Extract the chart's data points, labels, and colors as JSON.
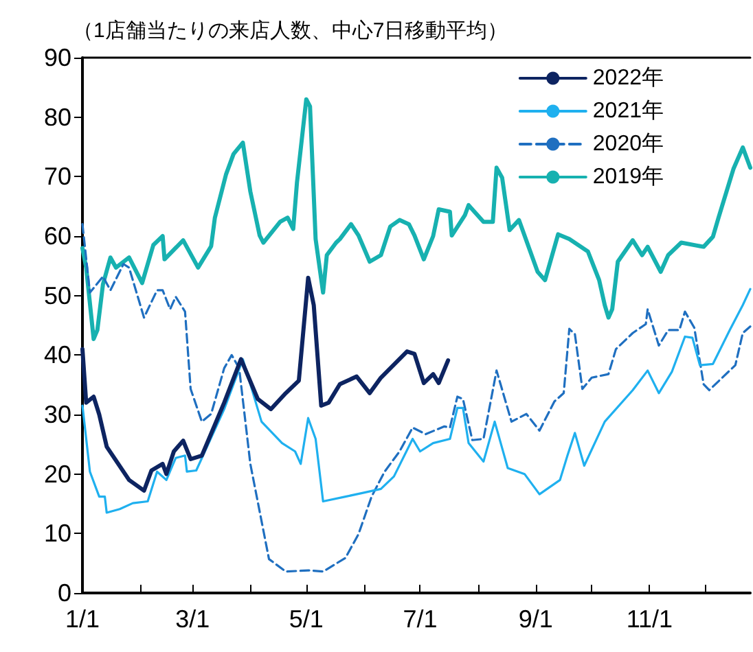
{
  "chart_data": {
    "type": "line",
    "title": "（1店舗当たりの来店人数、中心7日移動平均）",
    "xlim": [
      "--01-01",
      "--12-25"
    ],
    "xticks": [
      {
        "value": "--01-01",
        "label": "1/1"
      },
      {
        "value": "--02-01",
        "label": null
      },
      {
        "value": "--03-01",
        "label": "3/1"
      },
      {
        "value": "--04-01",
        "label": null
      },
      {
        "value": "--05-01",
        "label": "5/1"
      },
      {
        "value": "--06-01",
        "label": null
      },
      {
        "value": "--07-01",
        "label": "7/1"
      },
      {
        "value": "--08-01",
        "label": null
      },
      {
        "value": "--09-01",
        "label": "9/1"
      },
      {
        "value": "--10-01",
        "label": null
      },
      {
        "value": "--11-01",
        "label": "11/1"
      },
      {
        "value": "--12-01",
        "label": null
      }
    ],
    "ylim": [
      0,
      90
    ],
    "yticks": [
      0,
      10,
      20,
      30,
      40,
      50,
      60,
      70,
      80,
      90
    ],
    "grid": false,
    "legend": "top right",
    "marker": "none",
    "series": [
      {
        "name": "2022年",
        "color": "#0d2461",
        "x": [
          "--01-01",
          "--01-03",
          "--01-07",
          "--01-10",
          "--01-14",
          "--01-26",
          "--02-03",
          "--02-07",
          "--02-13",
          "--02-15",
          "--02-19",
          "--02-24",
          "--02-28",
          "--03-06",
          "--03-18",
          "--03-27",
          "--04-05",
          "--04-12",
          "--04-20",
          "--04-27",
          "--05-02",
          "--05-05",
          "--05-09",
          "--05-13",
          "--05-19",
          "--05-28",
          "--06-04",
          "--06-10",
          "--06-24",
          "--06-28",
          "--07-03",
          "--07-08",
          "--07-11",
          "--07-16"
        ],
        "values": [
          41,
          32,
          33,
          30,
          24.6,
          19,
          17.2,
          20.6,
          21.7,
          20,
          23.8,
          25.6,
          22.5,
          23.1,
          32,
          39.3,
          32.6,
          30.9,
          33.6,
          35.7,
          53,
          48.4,
          31.5,
          32,
          35.1,
          36.4,
          33.6,
          36.2,
          40.6,
          40.2,
          35.3,
          36.8,
          35.3,
          39.1
        ]
      },
      {
        "name": "2021年",
        "color": "#1fb0ef",
        "x": [
          "--01-01",
          "--01-05",
          "--01-10",
          "--01-13",
          "--01-14",
          "--01-21",
          "--01-28",
          "--02-05",
          "--02-10",
          "--02-15",
          "--02-20",
          "--02-25",
          "--02-26",
          "--03-03",
          "--03-18",
          "--03-28",
          "--04-07",
          "--04-18",
          "--04-25",
          "--04-28",
          "--05-02",
          "--05-06",
          "--05-10",
          "--05-22",
          "--05-31",
          "--06-10",
          "--06-17",
          "--06-27",
          "--07-01",
          "--07-08",
          "--07-17",
          "--07-21",
          "--07-24",
          "--07-27",
          "--08-04",
          "--08-10",
          "--08-17",
          "--08-26",
          "--09-03",
          "--09-14",
          "--09-18",
          "--09-22",
          "--09-27",
          "--10-08",
          "--10-23",
          "--10-31",
          "--11-06",
          "--11-13",
          "--11-20",
          "--11-24",
          "--11-28",
          "--12-05",
          "--12-14",
          "--12-21",
          "--12-25"
        ],
        "values": [
          31.5,
          20.4,
          16.2,
          16.2,
          13.5,
          14.1,
          15.1,
          15.4,
          20.4,
          19,
          22.7,
          23.1,
          20.4,
          20.6,
          30.9,
          39.3,
          28.8,
          25.2,
          23.8,
          21.7,
          29.4,
          25.9,
          15.4,
          16.2,
          16.8,
          17.5,
          19.6,
          25.9,
          23.8,
          25.2,
          25.9,
          31.1,
          31.1,
          25.2,
          22.1,
          28.8,
          21,
          20,
          16.6,
          19,
          23.1,
          26.9,
          21.4,
          28.8,
          34.1,
          37.4,
          33.6,
          37.2,
          43.1,
          42.9,
          38.3,
          38.5,
          44.2,
          48.4,
          51.1
        ]
      },
      {
        "name": "2020年",
        "color": "#1f6fc0",
        "line_style": "dashed",
        "x": [
          "--01-01",
          "--01-05",
          "--01-12",
          "--01-16",
          "--01-23",
          "--01-26",
          "--02-03",
          "--02-10",
          "--02-13",
          "--02-17",
          "--02-20",
          "--02-25",
          "--02-28",
          "--03-06",
          "--03-11",
          "--03-18",
          "--03-22",
          "--03-26",
          "--04-01",
          "--04-11",
          "--04-20",
          "--05-02",
          "--05-10",
          "--05-22",
          "--05-29",
          "--06-05",
          "--06-12",
          "--06-20",
          "--06-27",
          "--07-04",
          "--07-14",
          "--07-17",
          "--07-21",
          "--07-24",
          "--07-29",
          "--08-04",
          "--08-11",
          "--08-19",
          "--08-27",
          "--09-03",
          "--09-11",
          "--09-16",
          "--09-19",
          "--09-22",
          "--09-26",
          "--10-01",
          "--10-10",
          "--10-14",
          "--10-23",
          "--10-30",
          "--10-31",
          "--11-06",
          "--11-11",
          "--11-17",
          "--11-20",
          "--11-25",
          "--11-30",
          "--12-03",
          "--12-17",
          "--12-21",
          "--12-25"
        ],
        "values": [
          62,
          50.5,
          53.2,
          50.9,
          55.3,
          54.7,
          46.3,
          50.9,
          50.9,
          47.7,
          49.8,
          47.3,
          34.3,
          28.8,
          30.1,
          37.8,
          40,
          37.8,
          21.7,
          5.7,
          3.6,
          3.8,
          3.6,
          5.9,
          9.9,
          16.2,
          20.4,
          23.8,
          27.8,
          26.7,
          28,
          27.8,
          33,
          32.6,
          25.7,
          25.9,
          37.4,
          28.8,
          30.1,
          27.3,
          32.2,
          33.6,
          44.4,
          43.5,
          34.3,
          36.2,
          36.8,
          41,
          43.7,
          45.2,
          47.7,
          41.6,
          44.2,
          44.2,
          47.3,
          44.6,
          35.1,
          34.1,
          38.3,
          43.7,
          44.8
        ]
      },
      {
        "name": "2019年",
        "color": "#17b1b0",
        "x": [
          "--01-01",
          "--01-03",
          "--01-07",
          "--01-09",
          "--01-12",
          "--01-16",
          "--01-19",
          "--01-26",
          "--02-02",
          "--02-08",
          "--02-13",
          "--02-14",
          "--02-24",
          "--03-04",
          "--03-11",
          "--03-13",
          "--03-19",
          "--03-23",
          "--03-28",
          "--04-01",
          "--04-06",
          "--04-08",
          "--04-17",
          "--04-21",
          "--04-24",
          "--04-26",
          "--05-01",
          "--05-03",
          "--05-06",
          "--05-10",
          "--05-12",
          "--05-17",
          "--05-19",
          "--05-25",
          "--05-29",
          "--06-04",
          "--06-10",
          "--06-15",
          "--06-20",
          "--06-25",
          "--06-28",
          "--07-03",
          "--07-08",
          "--07-11",
          "--07-17",
          "--07-18",
          "--07-25",
          "--07-27",
          "--08-04",
          "--08-09",
          "--08-11",
          "--08-14",
          "--08-18",
          "--08-23",
          "--09-02",
          "--09-06",
          "--09-13",
          "--09-19",
          "--09-29",
          "--10-05",
          "--10-08",
          "--10-10",
          "--10-12",
          "--10-15",
          "--10-23",
          "--10-28",
          "--10-31",
          "--11-07",
          "--11-11",
          "--11-18",
          "--11-30",
          "--12-05",
          "--12-08",
          "--12-16",
          "--12-21",
          "--12-25"
        ],
        "values": [
          58,
          54.7,
          42.7,
          44.2,
          51.9,
          56.4,
          54.7,
          56.4,
          52.1,
          58.5,
          60,
          56.1,
          59.3,
          54.7,
          58.3,
          63.1,
          70.4,
          73.8,
          75.7,
          67.5,
          60.1,
          58.9,
          62.4,
          63.1,
          61.2,
          69,
          83,
          81.8,
          59.5,
          50.5,
          56.8,
          58.9,
          59.5,
          62,
          60.1,
          55.7,
          56.8,
          61.6,
          62.7,
          62,
          60.1,
          56.1,
          60,
          64.5,
          64.1,
          60.1,
          63.5,
          65.2,
          62.4,
          62.4,
          71.5,
          69.8,
          61,
          62.7,
          54,
          52.6,
          60.3,
          59.5,
          57.4,
          52.6,
          48.4,
          46.3,
          47.7,
          55.7,
          59.3,
          56.8,
          58.2,
          54,
          56.8,
          58.9,
          58.2,
          59.9,
          63.1,
          71.3,
          74.9,
          71.5
        ]
      }
    ]
  }
}
